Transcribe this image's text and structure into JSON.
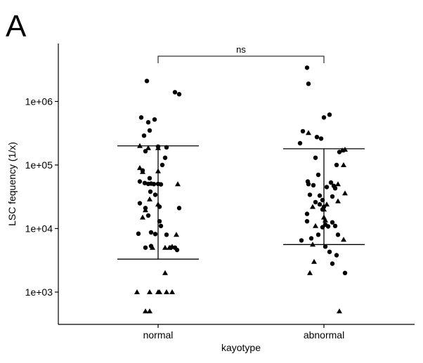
{
  "panel_label": "A",
  "chart_data": {
    "type": "scatter",
    "title": "",
    "xlabel": "kayotype",
    "ylabel": "LSC fequency (1/x)",
    "yscale": "log",
    "ylim": [
      300,
      7000000
    ],
    "yticks": [
      {
        "value": 1000,
        "label": "1e+03"
      },
      {
        "value": 10000,
        "label": "1e+04"
      },
      {
        "value": 100000,
        "label": "1e+05"
      },
      {
        "value": 1000000,
        "label": "1e+06"
      }
    ],
    "categories": [
      "normal",
      "abnormal"
    ],
    "grid": false,
    "significance": {
      "groups": [
        "normal",
        "abnormal"
      ],
      "label": "ns"
    },
    "summary_bars": [
      {
        "category": "normal",
        "lower": 3300,
        "center": 50000,
        "upper": 200000
      },
      {
        "category": "abnormal",
        "lower": 5600,
        "center": 50000,
        "upper": 180000
      }
    ],
    "series": [
      {
        "category": "normal",
        "circles": [
          {
            "j": -0.16,
            "y": 2100000
          },
          {
            "j": 0.24,
            "y": 1400000
          },
          {
            "j": 0.3,
            "y": 1300000
          },
          {
            "j": -0.24,
            "y": 560000
          },
          {
            "j": -0.05,
            "y": 520000
          },
          {
            "j": -0.14,
            "y": 470000
          },
          {
            "j": -0.12,
            "y": 350000
          },
          {
            "j": -0.2,
            "y": 290000
          },
          {
            "j": 0.0,
            "y": 195000
          },
          {
            "j": 0.12,
            "y": 190000
          },
          {
            "j": -0.18,
            "y": 165000
          },
          {
            "j": 0.1,
            "y": 130000
          },
          {
            "j": 0.06,
            "y": 100000
          },
          {
            "j": -0.22,
            "y": 82000
          },
          {
            "j": -0.12,
            "y": 62000
          },
          {
            "j": -0.26,
            "y": 55000
          },
          {
            "j": -0.19,
            "y": 52000
          },
          {
            "j": -0.14,
            "y": 50500
          },
          {
            "j": -0.1,
            "y": 51000
          },
          {
            "j": -0.06,
            "y": 50000
          },
          {
            "j": 0.0,
            "y": 50500
          },
          {
            "j": 0.04,
            "y": 49500
          },
          {
            "j": -0.11,
            "y": 38000
          },
          {
            "j": -0.04,
            "y": 34000
          },
          {
            "j": -0.26,
            "y": 25000
          },
          {
            "j": -0.18,
            "y": 21000
          },
          {
            "j": 0.02,
            "y": 22000
          },
          {
            "j": 0.3,
            "y": 21000
          },
          {
            "j": -0.14,
            "y": 16000
          },
          {
            "j": 0.02,
            "y": 13000
          },
          {
            "j": 0.04,
            "y": 11000
          },
          {
            "j": -0.28,
            "y": 8300
          },
          {
            "j": -0.1,
            "y": 8700
          },
          {
            "j": -0.04,
            "y": 8200
          },
          {
            "j": 0.12,
            "y": 8000
          },
          {
            "j": -0.1,
            "y": 5300
          },
          {
            "j": -0.18,
            "y": 5000
          },
          {
            "j": 0.18,
            "y": 5000
          },
          {
            "j": 0.24,
            "y": 5000
          },
          {
            "j": 0.27,
            "y": 4600
          }
        ],
        "triangles": [
          {
            "j": -0.26,
            "y": 200000
          },
          {
            "j": -0.14,
            "y": 185000
          },
          {
            "j": 0.0,
            "y": 185000
          },
          {
            "j": -0.26,
            "y": 90000
          },
          {
            "j": -0.22,
            "y": 78000
          },
          {
            "j": 0.0,
            "y": 80000
          },
          {
            "j": 0.28,
            "y": 50000
          },
          {
            "j": -0.12,
            "y": 29000
          },
          {
            "j": 0.0,
            "y": 24000
          },
          {
            "j": -0.18,
            "y": 19500
          },
          {
            "j": -0.22,
            "y": 15000
          },
          {
            "j": 0.26,
            "y": 8000
          },
          {
            "j": 0.2,
            "y": 5200
          },
          {
            "j": -0.08,
            "y": 5000
          },
          {
            "j": 0.16,
            "y": 5000
          },
          {
            "j": 0.1,
            "y": 5000
          },
          {
            "j": 0.1,
            "y": 2000
          },
          {
            "j": -0.3,
            "y": 1000
          },
          {
            "j": -0.12,
            "y": 1000
          },
          {
            "j": 0.0,
            "y": 1000
          },
          {
            "j": 0.02,
            "y": 1000
          },
          {
            "j": 0.12,
            "y": 1000
          },
          {
            "j": 0.2,
            "y": 1000
          },
          {
            "j": -0.18,
            "y": 500
          },
          {
            "j": -0.12,
            "y": 500
          }
        ]
      },
      {
        "category": "abnormal",
        "circles": [
          {
            "j": -0.24,
            "y": 3400000
          },
          {
            "j": -0.22,
            "y": 1900000
          },
          {
            "j": 0.08,
            "y": 620000
          },
          {
            "j": 0.0,
            "y": 560000
          },
          {
            "j": -0.3,
            "y": 340000
          },
          {
            "j": -0.1,
            "y": 275000
          },
          {
            "j": -0.04,
            "y": 260000
          },
          {
            "j": -0.34,
            "y": 220000
          },
          {
            "j": 0.22,
            "y": 160000
          },
          {
            "j": -0.12,
            "y": 130000
          },
          {
            "j": 0.18,
            "y": 100000
          },
          {
            "j": -0.08,
            "y": 70000
          },
          {
            "j": -0.23,
            "y": 55000
          },
          {
            "j": -0.22,
            "y": 50000
          },
          {
            "j": 0.1,
            "y": 53000
          },
          {
            "j": -0.15,
            "y": 48000
          },
          {
            "j": 0.14,
            "y": 47000
          },
          {
            "j": 0.04,
            "y": 45000
          },
          {
            "j": 0.16,
            "y": 43000
          },
          {
            "j": -0.2,
            "y": 34000
          },
          {
            "j": 0.12,
            "y": 32000
          },
          {
            "j": -0.06,
            "y": 33000
          },
          {
            "j": -0.02,
            "y": 28000
          },
          {
            "j": -0.12,
            "y": 26000
          },
          {
            "j": -0.06,
            "y": 24000
          },
          {
            "j": 0.0,
            "y": 22000
          },
          {
            "j": -0.02,
            "y": 20000
          },
          {
            "j": -0.24,
            "y": 17000
          },
          {
            "j": -0.24,
            "y": 13000
          },
          {
            "j": 0.12,
            "y": 12500
          },
          {
            "j": 0.16,
            "y": 11000
          },
          {
            "j": 0.02,
            "y": 11500
          },
          {
            "j": 0.06,
            "y": 10800
          },
          {
            "j": -0.02,
            "y": 10500
          },
          {
            "j": -0.08,
            "y": 8000
          },
          {
            "j": 0.2,
            "y": 8000
          },
          {
            "j": -0.18,
            "y": 7000
          },
          {
            "j": -0.32,
            "y": 6500
          },
          {
            "j": 0.02,
            "y": 5200
          },
          {
            "j": 0.08,
            "y": 4300
          },
          {
            "j": 0.18,
            "y": 3800
          },
          {
            "j": 0.12,
            "y": 2800
          },
          {
            "j": 0.3,
            "y": 2000
          }
        ],
        "triangles": [
          {
            "j": -0.22,
            "y": 320000
          },
          {
            "j": 0.3,
            "y": 175000
          },
          {
            "j": 0.26,
            "y": 170000
          },
          {
            "j": 0.28,
            "y": 100000
          },
          {
            "j": 0.2,
            "y": 50000
          },
          {
            "j": 0.3,
            "y": 36000
          },
          {
            "j": 0.2,
            "y": 27000
          },
          {
            "j": -0.16,
            "y": 22000
          },
          {
            "j": 0.04,
            "y": 24000
          },
          {
            "j": 0.0,
            "y": 20000
          },
          {
            "j": 0.0,
            "y": 15000
          },
          {
            "j": 0.02,
            "y": 13500
          },
          {
            "j": -0.12,
            "y": 11000
          },
          {
            "j": 0.28,
            "y": 6700
          },
          {
            "j": -0.16,
            "y": 5600
          },
          {
            "j": -0.14,
            "y": 3000
          },
          {
            "j": -0.2,
            "y": 2000
          },
          {
            "j": 0.22,
            "y": 500
          }
        ]
      }
    ]
  }
}
